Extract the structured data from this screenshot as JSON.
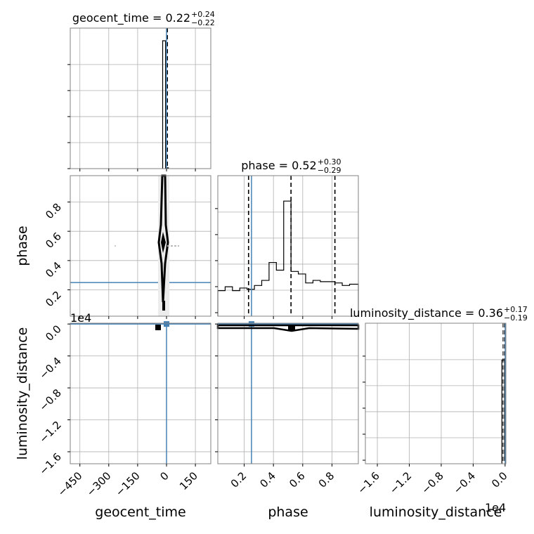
{
  "chart_data": {
    "type": "corner",
    "parameters": [
      "geocent_time",
      "phase",
      "luminosity_distance"
    ],
    "axis_labels": {
      "geocent_time": "geocent_time",
      "phase": "phase",
      "luminosity_distance": "luminosity_distance"
    },
    "axis_ranges": {
      "geocent_time": [
        -500,
        230
      ],
      "phase": [
        0.02,
        0.98
      ],
      "luminosity_distance": [
        -17500,
        100
      ]
    },
    "ticks": {
      "geocent_time": {
        "values": [
          -450,
          -300,
          -150,
          0,
          150
        ],
        "labels": [
          "−450",
          "−300",
          "−150",
          "0",
          "150"
        ]
      },
      "phase": {
        "values": [
          0.2,
          0.4,
          0.6,
          0.8
        ],
        "labels": [
          "0.2",
          "0.4",
          "0.6",
          "0.8"
        ]
      },
      "luminosity_distance": {
        "values": [
          -16000,
          -12000,
          -8000,
          -4000,
          0
        ],
        "labels": [
          "−1.6",
          "−1.2",
          "−0.8",
          "−0.4",
          "0.0"
        ]
      }
    },
    "offset_text": {
      "luminosity_distance": "1e4"
    },
    "diagonal_titles": [
      {
        "param": "geocent_time",
        "main": "geocent_time = 0.22",
        "plus": "+0.24",
        "minus": "−0.22"
      },
      {
        "param": "phase",
        "main": "phase = 0.52",
        "plus": "+0.30",
        "minus": "−0.29"
      },
      {
        "param": "luminosity_distance",
        "main": "luminosity_distance = 0.36",
        "plus": "+0.17",
        "minus": "−0.19"
      }
    ],
    "truths": {
      "geocent_time": 0,
      "phase": 0.25,
      "luminosity_distance": 0
    },
    "quantile_lines": {
      "geocent_time": [
        0,
        0.22,
        0.46
      ],
      "phase": [
        0.23,
        0.52,
        0.82
      ],
      "luminosity_distance": [
        0,
        0.36,
        0.53
      ]
    },
    "histograms": {
      "geocent_time": {
        "edges": [
          -20,
          -5,
          10
        ],
        "heights": [
          1.0,
          0.006
        ]
      },
      "phase": {
        "edges": [
          0.02,
          0.07,
          0.12,
          0.17,
          0.22,
          0.27,
          0.32,
          0.37,
          0.42,
          0.47,
          0.52,
          0.57,
          0.62,
          0.67,
          0.72,
          0.77,
          0.82,
          0.87,
          0.92,
          0.98
        ],
        "heights": [
          0.2,
          0.23,
          0.2,
          0.22,
          0.21,
          0.24,
          0.28,
          0.42,
          0.36,
          0.9,
          0.35,
          0.33,
          0.26,
          0.28,
          0.27,
          0.27,
          0.26,
          0.24,
          0.25
        ]
      },
      "luminosity_distance": {
        "edges": [
          -400,
          -60,
          60
        ],
        "heights": [
          0.82,
          0.04
        ]
      }
    },
    "grid": true
  }
}
